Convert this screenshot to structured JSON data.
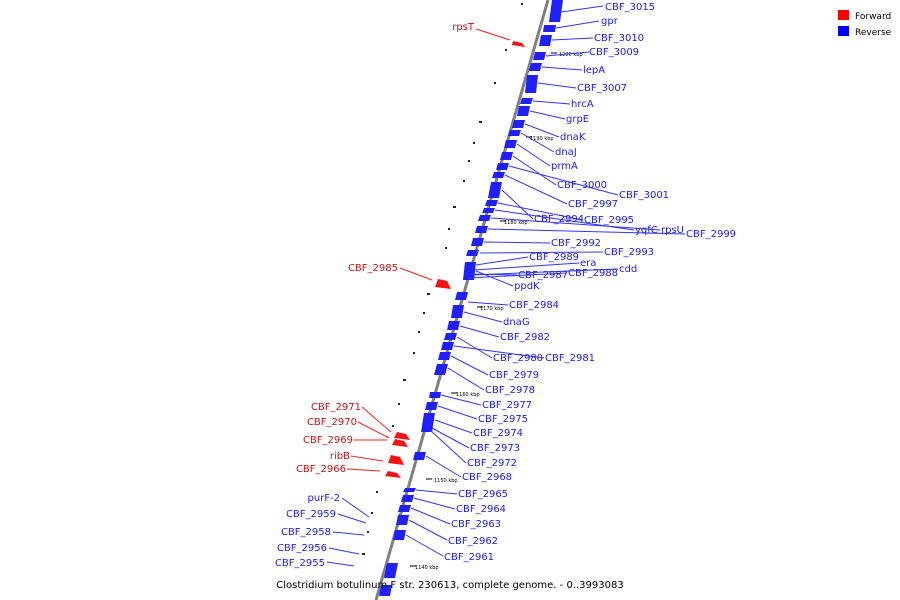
{
  "caption": "Clostridium botulinum F str. 230613, complete genome. - 0..3993083",
  "legend": {
    "forward": {
      "label": "Forward",
      "color": "#ff0000"
    },
    "reverse": {
      "label": "Reverse",
      "color": "#0000ff"
    }
  },
  "ticks": [
    "1140 kbp",
    "1150 kbp",
    "1160 kbp",
    "1170 kbp",
    "1180 kbp",
    "1190 kbp",
    "1200 kbp"
  ],
  "reverse_labels": [
    "CBF_3015",
    "gpr",
    "CBF_3010",
    "CBF_3009",
    "lepA",
    "CBF_3007",
    "hrcA",
    "grpE",
    "dnaK",
    "dnaJ",
    "prmA",
    "CBF_3000",
    "CBF_3001",
    "CBF_2997",
    "CBF_2994",
    "CBF_2995",
    "yqfC",
    "rpsU",
    "CBF_2999",
    "CBF_2992",
    "CBF_2993",
    "CBF_2989",
    "era",
    "cdd",
    "CBF_2987",
    "CBF_2988",
    "ppdK",
    "CBF_2984",
    "dnaG",
    "CBF_2982",
    "CBF_2980",
    "CBF_2981",
    "CBF_2979",
    "CBF_2978",
    "CBF_2977",
    "CBF_2975",
    "CBF_2974",
    "CBF_2973",
    "CBF_2972",
    "CBF_2968",
    "CBF_2965",
    "CBF_2964",
    "CBF_2963",
    "CBF_2962",
    "CBF_2961",
    "purF-2",
    "CBF_2959",
    "CBF_2958",
    "CBF_2956",
    "CBF_2955"
  ],
  "forward_labels": [
    "rpsT",
    "CBF_2985",
    "CBF_2971",
    "CBF_2970",
    "CBF_2969",
    "ribB",
    "CBF_2966"
  ]
}
